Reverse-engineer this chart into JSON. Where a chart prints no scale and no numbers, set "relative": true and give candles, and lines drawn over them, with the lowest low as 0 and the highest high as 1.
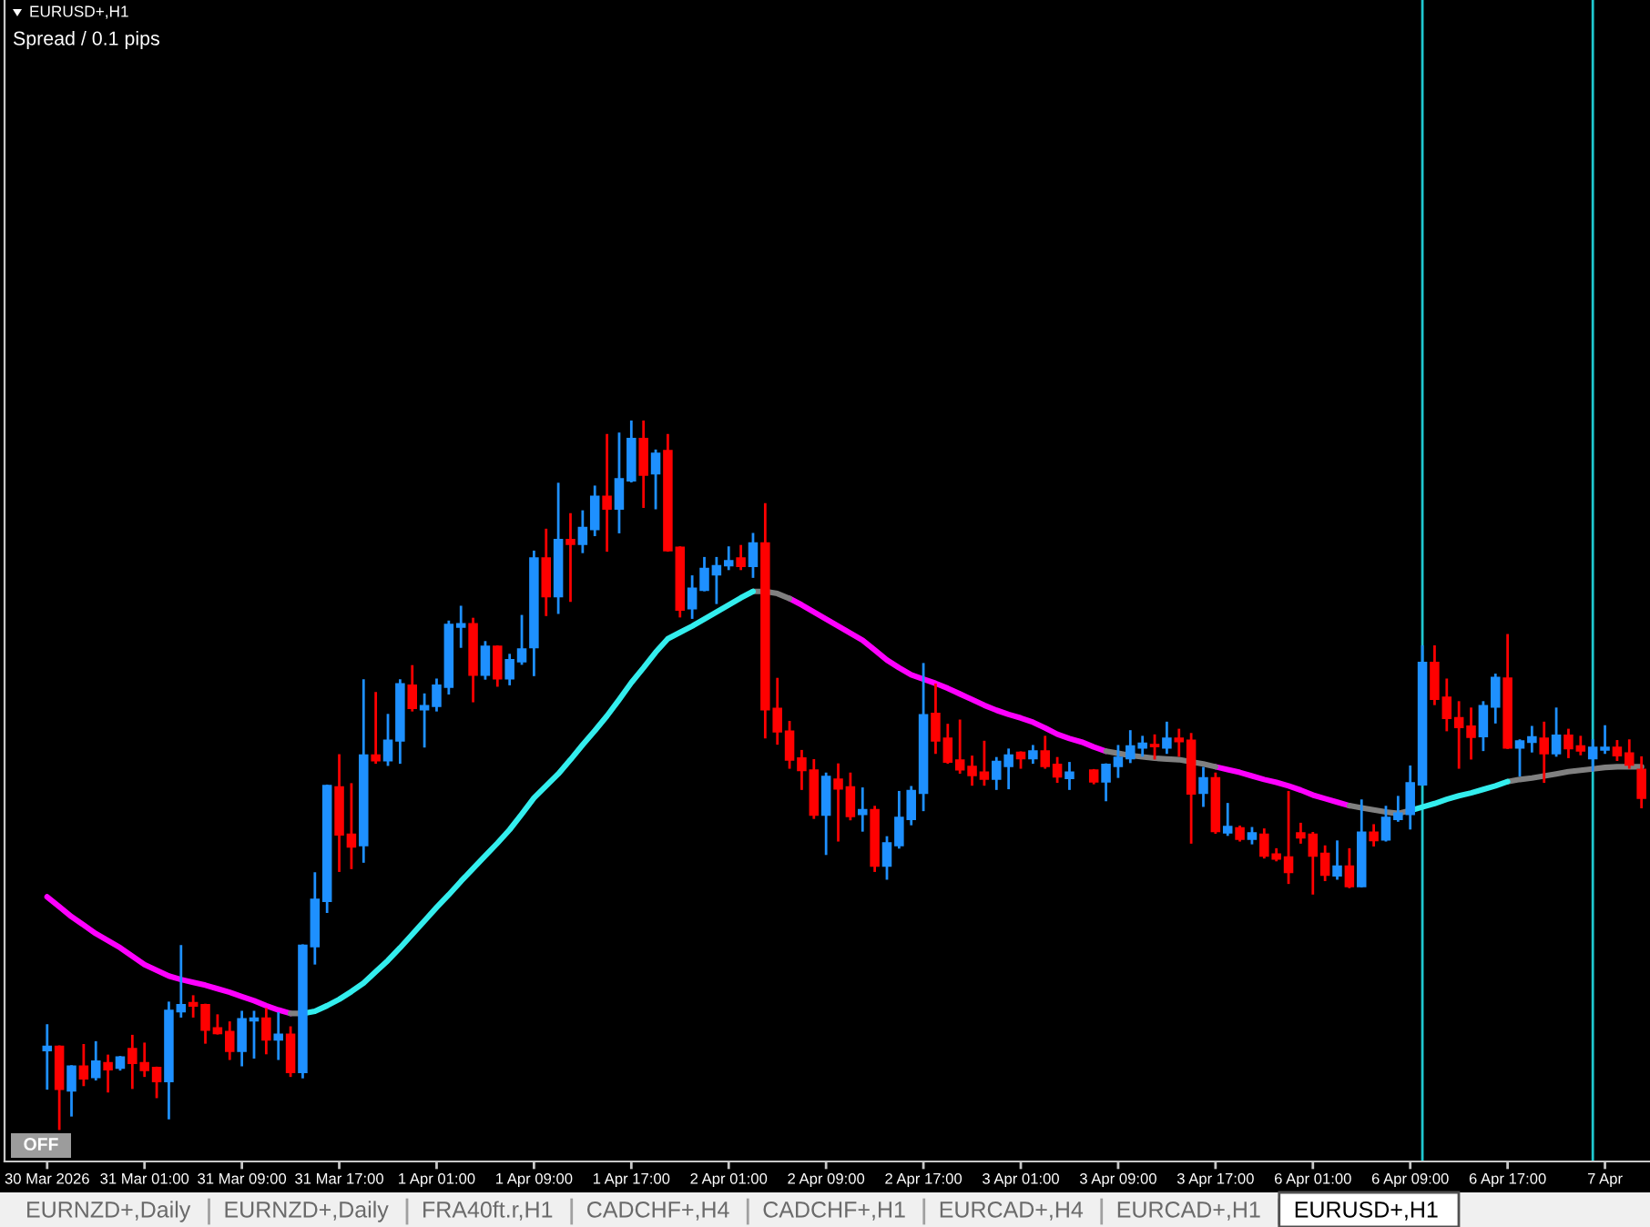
{
  "chart_data": {
    "type": "candlestick",
    "title": "EURUSD+,H1",
    "relative": true,
    "categories": [
      "30 Mar 2026",
      null,
      null,
      null,
      null,
      null,
      null,
      null,
      "31 Mar 01:00",
      null,
      null,
      null,
      null,
      null,
      null,
      null,
      "31 Mar 09:00",
      null,
      null,
      null,
      null,
      null,
      null,
      null,
      "31 Mar 17:00",
      null,
      null,
      null,
      null,
      null,
      null,
      null,
      "1 Apr 01:00",
      null,
      null,
      null,
      null,
      null,
      null,
      null,
      "1 Apr 09:00",
      null,
      null,
      null,
      null,
      null,
      null,
      null,
      "1 Apr 17:00",
      null,
      null,
      null,
      null,
      null,
      null,
      null,
      "2 Apr 01:00",
      null,
      null,
      null,
      null,
      null,
      null,
      null,
      "2 Apr 09:00",
      null,
      null,
      null,
      null,
      null,
      null,
      null,
      "2 Apr 17:00",
      null,
      null,
      null,
      null,
      null,
      null,
      null,
      "3 Apr 01:00",
      null,
      null,
      null,
      null,
      null,
      null,
      null,
      "3 Apr 09:00",
      null,
      null,
      null,
      null,
      null,
      null,
      null,
      "3 Apr 17:00",
      null,
      null,
      null,
      null,
      null,
      null,
      null,
      "6 Apr 01:00",
      null,
      null,
      null,
      null,
      null,
      null,
      null,
      "6 Apr 09:00",
      null,
      null,
      null,
      null,
      null,
      null,
      null,
      "6 Apr 17:00",
      null,
      null,
      null,
      null,
      null,
      null,
      null,
      "7 Apr",
      null,
      null,
      null
    ],
    "ohlc": [
      [
        0.111,
        0.146,
        0.057,
        0.116
      ],
      [
        0.116,
        0.116,
        0,
        0.056
      ],
      [
        0.054,
        0.088,
        0.019,
        0.088
      ],
      [
        0.088,
        0.118,
        0.062,
        0.071
      ],
      [
        0.073,
        0.122,
        0.07,
        0.095
      ],
      [
        0.093,
        0.103,
        0.053,
        0.084
      ],
      [
        0.086,
        0.101,
        0.084,
        0.101
      ],
      [
        0.113,
        0.131,
        0.058,
        0.093
      ],
      [
        0.093,
        0.12,
        0.075,
        0.083
      ],
      [
        0.086,
        0.086,
        0.045,
        0.067
      ],
      [
        0.067,
        0.178,
        0.015,
        0.167
      ],
      [
        0.166,
        0.258,
        0.159,
        0.175
      ],
      [
        0.178,
        0.187,
        0.159,
        0.174
      ],
      [
        0.175,
        0.175,
        0.122,
        0.14
      ],
      [
        0.142,
        0.16,
        0.135,
        0.135
      ],
      [
        0.137,
        0.15,
        0.099,
        0.11
      ],
      [
        0.11,
        0.165,
        0.09,
        0.155
      ],
      [
        0.153,
        0.165,
        0.101,
        0.156
      ],
      [
        0.156,
        0.169,
        0.107,
        0.126
      ],
      [
        0.126,
        0.163,
        0.099,
        0.133
      ],
      [
        0.133,
        0.143,
        0.075,
        0.08
      ],
      [
        0.08,
        0.259,
        0.073,
        0.259
      ],
      [
        0.258,
        0.361,
        0.234,
        0.324
      ],
      [
        0.322,
        0.485,
        0.307,
        0.485
      ],
      [
        0.483,
        0.528,
        0.365,
        0.416
      ],
      [
        0.416,
        0.487,
        0.369,
        0.399
      ],
      [
        0.401,
        0.634,
        0.378,
        0.528
      ],
      [
        0.528,
        0.616,
        0.518,
        0.521
      ],
      [
        0.521,
        0.585,
        0.515,
        0.549
      ],
      [
        0.549,
        0.634,
        0.518,
        0.629
      ],
      [
        0.627,
        0.654,
        0.592,
        0.595
      ],
      [
        0.593,
        0.614,
        0.541,
        0.598
      ],
      [
        0.598,
        0.635,
        0.592,
        0.627
      ],
      [
        0.625,
        0.717,
        0.616,
        0.713
      ],
      [
        0.71,
        0.738,
        0.682,
        0.714
      ],
      [
        0.714,
        0.721,
        0.605,
        0.642
      ],
      [
        0.642,
        0.688,
        0.637,
        0.682
      ],
      [
        0.682,
        0.682,
        0.627,
        0.637
      ],
      [
        0.637,
        0.67,
        0.629,
        0.663
      ],
      [
        0.661,
        0.725,
        0.658,
        0.678
      ],
      [
        0.681,
        0.816,
        0.642,
        0.807
      ],
      [
        0.807,
        0.847,
        0.727,
        0.753
      ],
      [
        0.753,
        0.912,
        0.73,
        0.833
      ],
      [
        0.833,
        0.869,
        0.747,
        0.827
      ],
      [
        0.827,
        0.873,
        0.816,
        0.85
      ],
      [
        0.848,
        0.908,
        0.84,
        0.894
      ],
      [
        0.894,
        0.981,
        0.818,
        0.877
      ],
      [
        0.877,
        0.983,
        0.844,
        0.919
      ],
      [
        0.917,
        1,
        0.916,
        0.976
      ],
      [
        0.976,
        1,
        0.88,
        0.925
      ],
      [
        0.927,
        0.959,
        0.878,
        0.955
      ],
      [
        0.959,
        0.981,
        0.818,
        0.818
      ],
      [
        0.822,
        0.822,
        0.725,
        0.734
      ],
      [
        0.736,
        0.781,
        0.723,
        0.764
      ],
      [
        0.762,
        0.807,
        0.762,
        0.792
      ],
      [
        0.784,
        0.807,
        0.744,
        0.796
      ],
      [
        0.797,
        0.822,
        0.792,
        0.803
      ],
      [
        0.807,
        0.824,
        0.792,
        0.796
      ],
      [
        0.796,
        0.841,
        0.781,
        0.828
      ],
      [
        0.828,
        0.883,
        0.554,
        0.593
      ],
      [
        0.594,
        0.636,
        0.545,
        0.562
      ],
      [
        0.562,
        0.575,
        0.511,
        0.522
      ],
      [
        0.524,
        0.534,
        0.481,
        0.507
      ],
      [
        0.507,
        0.521,
        0.44,
        0.444
      ],
      [
        0.444,
        0.502,
        0.389,
        0.498
      ],
      [
        0.494,
        0.515,
        0.408,
        0.481
      ],
      [
        0.483,
        0.502,
        0.438,
        0.442
      ],
      [
        0.445,
        0.481,
        0.422,
        0.451
      ],
      [
        0.451,
        0.455,
        0.365,
        0.372
      ],
      [
        0.372,
        0.412,
        0.354,
        0.404
      ],
      [
        0.401,
        0.476,
        0.398,
        0.44
      ],
      [
        0.438,
        0.483,
        0.431,
        0.478
      ],
      [
        0.475,
        0.657,
        0.451,
        0.585
      ],
      [
        0.587,
        0.628,
        0.532,
        0.549
      ],
      [
        0.552,
        0.571,
        0.518,
        0.519
      ],
      [
        0.521,
        0.577,
        0.504,
        0.508
      ],
      [
        0.512,
        0.526,
        0.487,
        0.5
      ],
      [
        0.504,
        0.547,
        0.487,
        0.495
      ],
      [
        0.495,
        0.524,
        0.481,
        0.519
      ],
      [
        0.513,
        0.536,
        0.482,
        0.528
      ],
      [
        0.532,
        0.532,
        0.511,
        0.524
      ],
      [
        0.524,
        0.541,
        0.518,
        0.534
      ],
      [
        0.534,
        0.554,
        0.511,
        0.513
      ],
      [
        0.515,
        0.524,
        0.491,
        0.498
      ],
      [
        0.496,
        0.517,
        0.481,
        0.504
      ],
      null,
      [
        0.507,
        0.507,
        0.489,
        0.491
      ],
      [
        0.491,
        0.515,
        0.465,
        0.515
      ],
      [
        0.513,
        0.541,
        0.498,
        0.525
      ],
      [
        0.524,
        0.562,
        0.519,
        0.541
      ],
      [
        0.539,
        0.554,
        0.528,
        0.545
      ],
      [
        0.543,
        0.556,
        0.524,
        0.541
      ],
      [
        0.539,
        0.574,
        0.532,
        0.552
      ],
      [
        0.552,
        0.564,
        0.528,
        0.548
      ],
      [
        0.549,
        0.558,
        0.405,
        0.474
      ],
      [
        0.475,
        0.51,
        0.457,
        0.496
      ],
      [
        0.496,
        0.502,
        0.419,
        0.421
      ],
      [
        0.419,
        0.459,
        0.416,
        0.427
      ],
      [
        0.425,
        0.427,
        0.408,
        0.41
      ],
      [
        0.41,
        0.425,
        0.404,
        0.418
      ],
      [
        0.416,
        0.423,
        0.384,
        0.386
      ],
      [
        0.388,
        0.395,
        0.38,
        0.382
      ],
      [
        0.384,
        0.476,
        0.348,
        0.363
      ],
      [
        0.418,
        0.431,
        0.405,
        0.412
      ],
      [
        0.416,
        0.418,
        0.333,
        0.386
      ],
      [
        0.389,
        0.399,
        0.352,
        0.359
      ],
      [
        0.358,
        0.406,
        0.354,
        0.371
      ],
      [
        0.371,
        0.395,
        0.342,
        0.343
      ],
      [
        0.343,
        0.464,
        0.343,
        0.419
      ],
      [
        0.419,
        0.429,
        0.401,
        0.408
      ],
      [
        0.409,
        0.455,
        0.408,
        0.44
      ],
      [
        0.438,
        0.469,
        0.436,
        0.446
      ],
      [
        0.445,
        0.512,
        0.425,
        0.489
      ],
      [
        0.487,
        0.682,
        0.487,
        0.659
      ],
      [
        0.659,
        0.682,
        0.601,
        0.608
      ],
      [
        0.61,
        0.635,
        0.564,
        0.581
      ],
      [
        0.581,
        0.603,
        0.511,
        0.568
      ],
      [
        0.569,
        0.594,
        0.524,
        0.554
      ],
      [
        0.555,
        0.603,
        0.536,
        0.598
      ],
      [
        0.597,
        0.642,
        0.575,
        0.638
      ],
      [
        0.637,
        0.698,
        0.539,
        0.539
      ],
      [
        0.539,
        0.549,
        0.5,
        0.548
      ],
      [
        0.547,
        0.568,
        0.534,
        0.554
      ],
      [
        0.552,
        0.574,
        0.491,
        0.531
      ],
      [
        0.531,
        0.594,
        0.528,
        0.556
      ],
      [
        0.556,
        0.564,
        0.526,
        0.538
      ],
      [
        0.541,
        0.554,
        0.53,
        0.535
      ],
      [
        0.524,
        0.549,
        0.507,
        0.539
      ],
      [
        0.536,
        0.569,
        0.532,
        0.539
      ],
      [
        0.539,
        0.548,
        0.522,
        0.528
      ],
      [
        0.531,
        0.549,
        0.511,
        0.515
      ],
      [
        0.508,
        0.525,
        0.455,
        0.468
      ]
    ],
    "colors": [
      "#1e90ff",
      "#ff0000",
      "#1e90ff",
      "#ff0000",
      "#1e90ff",
      "#ff0000",
      "#1e90ff",
      "#ff0000",
      "#ff0000",
      "#ff0000",
      "#1e90ff",
      "#1e90ff",
      "#ff0000",
      "#ff0000",
      "#ff0000",
      "#ff0000",
      "#1e90ff",
      "#1e90ff",
      "#ff0000",
      "#1e90ff",
      "#ff0000",
      "#1e90ff",
      "#1e90ff",
      "#1e90ff",
      "#ff0000",
      "#ff0000",
      "#1e90ff",
      "#ff0000",
      "#1e90ff",
      "#1e90ff",
      "#ff0000",
      "#1e90ff",
      "#1e90ff",
      "#1e90ff",
      "#1e90ff",
      "#ff0000",
      "#1e90ff",
      "#ff0000",
      "#1e90ff",
      "#1e90ff",
      "#1e90ff",
      "#ff0000",
      "#1e90ff",
      "#ff0000",
      "#1e90ff",
      "#1e90ff",
      "#ff0000",
      "#1e90ff",
      "#1e90ff",
      "#ff0000",
      "#1e90ff",
      "#ff0000",
      "#ff0000",
      "#1e90ff",
      "#1e90ff",
      "#1e90ff",
      "#1e90ff",
      "#ff0000",
      "#1e90ff",
      "#ff0000",
      "#ff0000",
      "#ff0000",
      "#ff0000",
      "#ff0000",
      "#1e90ff",
      "#ff0000",
      "#ff0000",
      "#1e90ff",
      "#ff0000",
      "#1e90ff",
      "#1e90ff",
      "#1e90ff",
      "#1e90ff",
      "#ff0000",
      "#ff0000",
      "#ff0000",
      "#ff0000",
      "#ff0000",
      "#1e90ff",
      "#1e90ff",
      "#ff0000",
      "#1e90ff",
      "#ff0000",
      "#ff0000",
      "#1e90ff",
      null,
      "#ff0000",
      "#1e90ff",
      "#1e90ff",
      "#1e90ff",
      "#1e90ff",
      "#ff0000",
      "#1e90ff",
      "#ff0000",
      "#ff0000",
      "#1e90ff",
      "#ff0000",
      "#1e90ff",
      "#ff0000",
      "#1e90ff",
      "#ff0000",
      "#ff0000",
      "#ff0000",
      "#ff0000",
      "#ff0000",
      "#ff0000",
      "#1e90ff",
      "#ff0000",
      "#1e90ff",
      "#ff0000",
      "#1e90ff",
      "#1e90ff",
      "#1e90ff",
      "#1e90ff",
      "#ff0000",
      "#ff0000",
      "#ff0000",
      "#ff0000",
      "#1e90ff",
      "#1e90ff",
      "#ff0000",
      "#1e90ff",
      "#1e90ff",
      "#ff0000",
      "#1e90ff",
      "#ff0000",
      "#ff0000",
      "#1e90ff",
      "#1e90ff",
      "#ff0000",
      "#ff0000",
      "#ff0000"
    ],
    "series": [
      {
        "type": "line",
        "color": "#ff00ff",
        "values": [
          0.328,
          0.314,
          0.3,
          0.288,
          0.276,
          0.266,
          0.256,
          0.244,
          0.232,
          0.224,
          0.216,
          0.211,
          0.207,
          0.203,
          0.198,
          0.193,
          0.187,
          0.181,
          0.174,
          0.168,
          0.163,
          null,
          null,
          null,
          null,
          null,
          null,
          null,
          null,
          null,
          null,
          null,
          null,
          null,
          null,
          null,
          null,
          null,
          null,
          null,
          null,
          null,
          null,
          null,
          null,
          null,
          null,
          null,
          null,
          null,
          null,
          null,
          null,
          null,
          null,
          null,
          null,
          null,
          null,
          null,
          null,
          0.75,
          0.741,
          0.731,
          0.721,
          0.711,
          0.701,
          0.691,
          0.677,
          0.663,
          0.652,
          0.642,
          0.636,
          0.63,
          0.623,
          0.615,
          0.607,
          0.599,
          0.592,
          0.586,
          0.581,
          0.575,
          0.567,
          0.558,
          0.552,
          0.547,
          0.54,
          0.534,
          null,
          null,
          null,
          null,
          null,
          null,
          null,
          null,
          0.512,
          0.508,
          0.504,
          0.499,
          0.494,
          0.49,
          0.485,
          0.479,
          0.472,
          0.467,
          0.462,
          0.457,
          null,
          null,
          null,
          null,
          null,
          null,
          null,
          null,
          null,
          null,
          null,
          null,
          null,
          null,
          null,
          null,
          null,
          null,
          null,
          null,
          null,
          null,
          null,
          null
        ]
      },
      {
        "type": "line",
        "color": "#808080",
        "values": [
          null,
          null,
          null,
          null,
          null,
          null,
          null,
          null,
          null,
          null,
          null,
          null,
          null,
          null,
          null,
          null,
          null,
          null,
          null,
          null,
          0.163,
          0.163,
          null,
          null,
          null,
          null,
          null,
          null,
          null,
          null,
          null,
          null,
          null,
          null,
          null,
          null,
          null,
          null,
          null,
          null,
          null,
          null,
          null,
          null,
          null,
          null,
          null,
          null,
          null,
          null,
          null,
          null,
          null,
          null,
          null,
          null,
          null,
          null,
          0.76,
          0.76,
          0.757,
          0.75,
          null,
          null,
          null,
          null,
          null,
          null,
          null,
          null,
          null,
          null,
          null,
          null,
          null,
          null,
          null,
          null,
          null,
          null,
          null,
          null,
          null,
          null,
          null,
          null,
          null,
          0.534,
          0.531,
          0.528,
          0.526,
          0.524,
          0.523,
          0.522,
          0.519,
          0.516,
          0.512,
          null,
          null,
          null,
          null,
          null,
          null,
          null,
          null,
          null,
          null,
          0.457,
          0.454,
          0.451,
          0.448,
          0.446,
          0.45,
          null,
          null,
          null,
          null,
          null,
          null,
          null,
          0.491,
          0.494,
          0.496,
          0.499,
          0.502,
          0.505,
          0.507,
          0.509,
          0.511,
          0.512,
          0.512,
          0.512
        ]
      },
      {
        "type": "line",
        "color": "#33eeee",
        "values": [
          null,
          null,
          null,
          null,
          null,
          null,
          null,
          null,
          null,
          null,
          null,
          null,
          null,
          null,
          null,
          null,
          null,
          null,
          null,
          null,
          null,
          0.163,
          0.166,
          0.174,
          0.183,
          0.194,
          0.206,
          0.222,
          0.238,
          0.256,
          0.275,
          0.294,
          0.313,
          0.331,
          0.35,
          0.368,
          0.386,
          0.404,
          0.423,
          0.445,
          0.468,
          0.485,
          0.502,
          0.522,
          0.543,
          0.563,
          0.584,
          0.607,
          0.631,
          0.652,
          0.674,
          0.693,
          0.702,
          0.711,
          0.721,
          0.731,
          0.741,
          0.751,
          0.76,
          null,
          null,
          null,
          null,
          null,
          null,
          null,
          null,
          null,
          null,
          null,
          null,
          null,
          null,
          null,
          null,
          null,
          null,
          null,
          null,
          null,
          null,
          null,
          null,
          null,
          null,
          null,
          null,
          null,
          null,
          null,
          null,
          null,
          null,
          null,
          null,
          null,
          null,
          null,
          null,
          null,
          null,
          null,
          null,
          null,
          null,
          null,
          null,
          null,
          null,
          null,
          null,
          null,
          0.45,
          0.455,
          0.46,
          0.466,
          0.471,
          0.475,
          0.48,
          0.485,
          0.491,
          null,
          null,
          null,
          null,
          null,
          null,
          null,
          null,
          null,
          null,
          null
        ]
      }
    ],
    "annotations": [
      "Spread / 0.1 pips",
      "OFF",
      "EURNZD+,Daily",
      "EURNZD+,Daily",
      "FRA40ft.r,H1",
      "CADCHF+,H4",
      "CADCHF+,H1",
      "EURCAD+,H4",
      "EURCAD+,H1",
      "EURUSD+,H1"
    ]
  }
}
